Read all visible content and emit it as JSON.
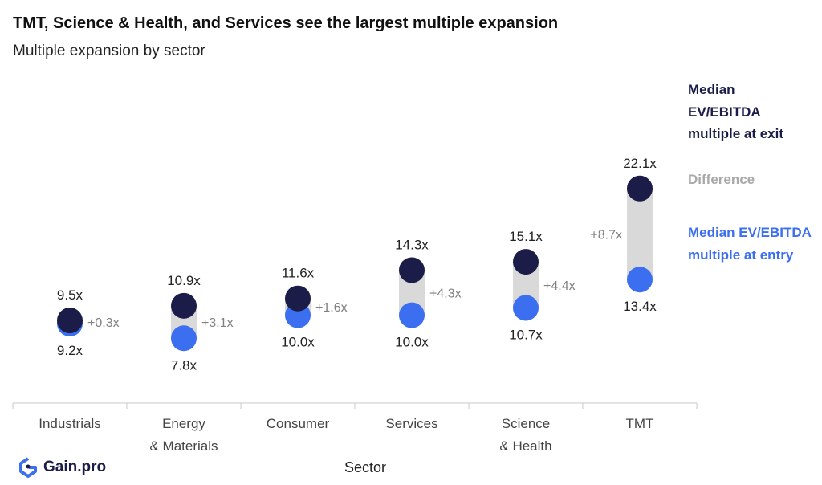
{
  "title": "TMT, Science & Health, and Services see the largest multiple expansion",
  "subtitle": "Multiple expansion by sector",
  "legend": {
    "exit": "Median EV/EBITDA multiple at exit",
    "difference": "Difference",
    "entry": "Median EV/EBITDA multiple at entry"
  },
  "brand": {
    "name": "Gain.pro",
    "icon": "gain-pro-logo-icon"
  },
  "colors": {
    "exit": "#1b1c48",
    "entry": "#3b6ff0",
    "bar": "#d9d9d9",
    "diff_text": "#808080"
  },
  "chart_data": {
    "type": "dumbbell",
    "xlabel": "Sector",
    "categories": [
      [
        "Industrials"
      ],
      [
        "Energy",
        "& Materials"
      ],
      [
        "Consumer"
      ],
      [
        "Services"
      ],
      [
        "Science",
        "& Health"
      ],
      [
        "TMT"
      ]
    ],
    "series": [
      {
        "name": "Median EV/EBITDA multiple at entry",
        "values": [
          9.2,
          7.8,
          10.0,
          10.0,
          10.7,
          13.4
        ]
      },
      {
        "name": "Median EV/EBITDA multiple at exit",
        "values": [
          9.5,
          10.9,
          11.6,
          14.3,
          15.1,
          22.1
        ]
      }
    ],
    "entry_labels": [
      "9.2x",
      "7.8x",
      "10.0x",
      "10.0x",
      "10.7x",
      "13.4x"
    ],
    "exit_labels": [
      "9.5x",
      "10.9x",
      "11.6x",
      "14.3x",
      "15.1x",
      "22.1x"
    ],
    "difference_labels": [
      "+0.3x",
      "+3.1x",
      "+1.6x",
      "+4.3x",
      "+4.4x",
      "+8.7x"
    ]
  }
}
